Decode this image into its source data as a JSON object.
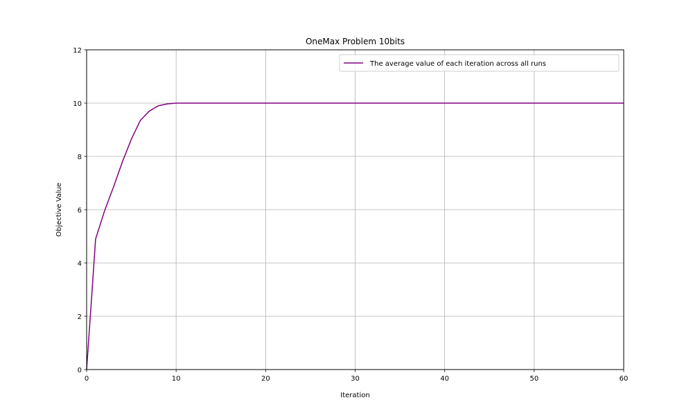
{
  "chart_data": {
    "type": "line",
    "title": "OneMax Problem 10bits",
    "xlabel": "Iteration",
    "ylabel": "Objective Value",
    "xlim": [
      0,
      60
    ],
    "ylim": [
      0,
      12
    ],
    "xticks": [
      0,
      10,
      20,
      30,
      40,
      50,
      60
    ],
    "yticks": [
      0,
      2,
      4,
      6,
      8,
      10,
      12
    ],
    "grid": true,
    "legend_position": "top-right",
    "series": [
      {
        "name": "The average value of each iteration across all runs",
        "color": "#800080",
        "x": [
          0,
          0.7,
          1,
          2,
          3,
          4,
          5,
          6,
          7,
          8,
          9,
          10,
          11,
          12,
          13,
          14,
          15,
          16,
          17,
          18,
          19,
          20,
          21,
          22,
          23,
          24,
          25,
          26,
          27,
          28,
          29,
          30,
          31,
          32,
          33,
          34,
          35,
          36,
          37,
          38,
          39,
          40,
          41,
          42,
          43,
          44,
          45,
          46,
          47,
          48,
          49,
          50,
          51,
          52,
          53,
          54,
          55,
          56,
          57,
          58,
          59,
          60
        ],
        "y": [
          0,
          3.4,
          4.9,
          5.95,
          6.85,
          7.8,
          8.65,
          9.35,
          9.7,
          9.9,
          9.97,
          10,
          10,
          10,
          10,
          10,
          10,
          10,
          10,
          10,
          10,
          10,
          10,
          10,
          10,
          10,
          10,
          10,
          10,
          10,
          10,
          10,
          10,
          10,
          10,
          10,
          10,
          10,
          10,
          10,
          10,
          10,
          10,
          10,
          10,
          10,
          10,
          10,
          10,
          10,
          10,
          10,
          10,
          10,
          10,
          10,
          10,
          10,
          10,
          10,
          10,
          10
        ]
      }
    ]
  }
}
